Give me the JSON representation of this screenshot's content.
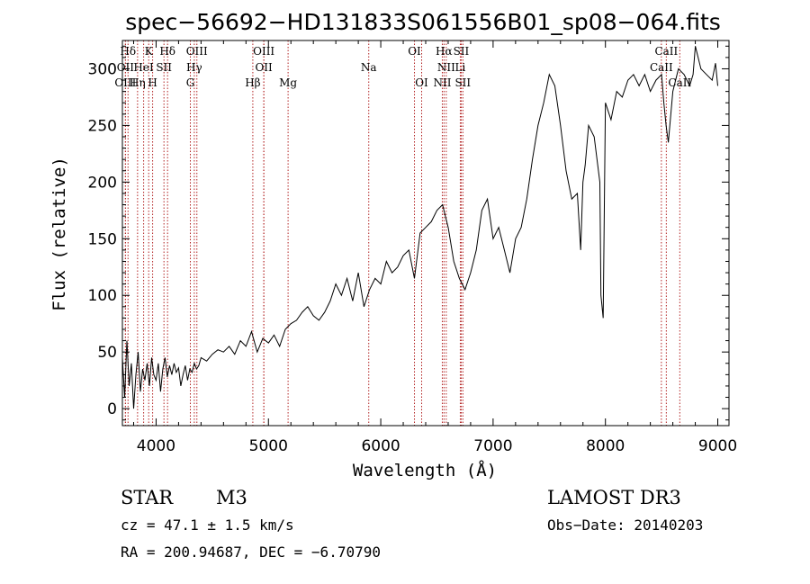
{
  "chart_data": {
    "type": "line",
    "title": "spec−56692−HD131833S061556B01_sp08−064.fits",
    "xlabel": "Wavelength (Å)",
    "ylabel": "Flux (relative)",
    "xlim": [
      3700,
      9100
    ],
    "ylim": [
      -15,
      325
    ],
    "xticks": [
      4000,
      5000,
      6000,
      7000,
      8000,
      9000
    ],
    "yticks": [
      0,
      50,
      100,
      150,
      200,
      250,
      300
    ],
    "grid": false,
    "series": [
      {
        "color": "#000000",
        "x": [
          3700,
          3720,
          3740,
          3760,
          3780,
          3800,
          3820,
          3840,
          3860,
          3880,
          3900,
          3920,
          3940,
          3960,
          3980,
          4000,
          4020,
          4040,
          4060,
          4080,
          4100,
          4120,
          4140,
          4160,
          4180,
          4200,
          4220,
          4240,
          4260,
          4280,
          4300,
          4320,
          4340,
          4360,
          4380,
          4400,
          4450,
          4500,
          4550,
          4600,
          4650,
          4700,
          4750,
          4800,
          4850,
          4900,
          4950,
          5000,
          5050,
          5100,
          5150,
          5200,
          5250,
          5300,
          5350,
          5400,
          5450,
          5500,
          5550,
          5600,
          5650,
          5700,
          5750,
          5800,
          5850,
          5900,
          5950,
          6000,
          6050,
          6100,
          6150,
          6200,
          6250,
          6300,
          6350,
          6400,
          6450,
          6500,
          6550,
          6600,
          6650,
          6700,
          6750,
          6800,
          6850,
          6900,
          6950,
          7000,
          7050,
          7100,
          7150,
          7200,
          7250,
          7300,
          7350,
          7400,
          7450,
          7500,
          7550,
          7600,
          7650,
          7700,
          7750,
          7780,
          7800,
          7820,
          7850,
          7900,
          7950,
          7960,
          7980,
          8000,
          8050,
          8100,
          8150,
          8200,
          8250,
          8300,
          8350,
          8400,
          8450,
          8500,
          8520,
          8540,
          8560,
          8600,
          8650,
          8700,
          8750,
          8780,
          8800,
          8850,
          8900,
          8950,
          8980,
          9000
        ],
        "y": [
          45,
          10,
          60,
          20,
          40,
          0,
          30,
          50,
          15,
          35,
          25,
          40,
          20,
          45,
          30,
          25,
          40,
          15,
          35,
          45,
          28,
          38,
          30,
          40,
          32,
          36,
          20,
          30,
          38,
          25,
          35,
          32,
          40,
          35,
          38,
          45,
          42,
          48,
          52,
          50,
          55,
          48,
          60,
          55,
          68,
          50,
          62,
          58,
          65,
          55,
          70,
          75,
          78,
          85,
          90,
          82,
          78,
          85,
          95,
          110,
          100,
          115,
          95,
          120,
          90,
          105,
          115,
          110,
          130,
          120,
          125,
          135,
          140,
          115,
          155,
          160,
          165,
          175,
          180,
          160,
          130,
          115,
          105,
          120,
          140,
          175,
          185,
          150,
          160,
          140,
          120,
          150,
          160,
          185,
          220,
          250,
          270,
          295,
          285,
          250,
          210,
          185,
          190,
          140,
          200,
          215,
          250,
          240,
          200,
          100,
          80,
          270,
          255,
          280,
          275,
          290,
          295,
          285,
          295,
          280,
          290,
          295,
          270,
          250,
          235,
          280,
          300,
          295,
          285,
          295,
          320,
          300,
          295,
          290,
          305,
          285
        ]
      }
    ],
    "line_markers": [
      {
        "label": "Hδ",
        "x": 3750,
        "row": 0
      },
      {
        "label": "K",
        "x": 3934,
        "row": 0
      },
      {
        "label": "Hδ",
        "x": 4102,
        "row": 0
      },
      {
        "label": "OIII",
        "x": 4363,
        "row": 0
      },
      {
        "label": "OIII",
        "x": 4959,
        "row": 0
      },
      {
        "label": "OI",
        "x": 6300,
        "row": 0
      },
      {
        "label": "Hα",
        "x": 6563,
        "row": 0
      },
      {
        "label": "SII",
        "x": 6716,
        "row": 0
      },
      {
        "label": "CaII",
        "x": 8542,
        "row": 0
      },
      {
        "label": "OII",
        "x": 3727,
        "row": 1
      },
      {
        "label": "HeI",
        "x": 3889,
        "row": 1
      },
      {
        "label": "SII",
        "x": 4070,
        "row": 1
      },
      {
        "label": "Hγ",
        "x": 4340,
        "row": 1
      },
      {
        "label": "OII",
        "x": 4959,
        "row": 1
      },
      {
        "label": "Na",
        "x": 5893,
        "row": 1
      },
      {
        "label": "NII",
        "x": 6583,
        "row": 1
      },
      {
        "label": "Li",
        "x": 6708,
        "row": 1
      },
      {
        "label": "CaII",
        "x": 8498,
        "row": 1
      },
      {
        "label": "OIII",
        "x": 3727,
        "row": 2
      },
      {
        "label": "Hη",
        "x": 3835,
        "row": 2
      },
      {
        "label": "H",
        "x": 3969,
        "row": 2
      },
      {
        "label": "G",
        "x": 4305,
        "row": 2
      },
      {
        "label": "Hβ",
        "x": 4861,
        "row": 2
      },
      {
        "label": "Mg",
        "x": 5175,
        "row": 2
      },
      {
        "label": "OI",
        "x": 6364,
        "row": 2
      },
      {
        "label": "NII",
        "x": 6548,
        "row": 2
      },
      {
        "label": "SII",
        "x": 6731,
        "row": 2
      },
      {
        "label": "CaII",
        "x": 8662,
        "row": 2
      }
    ],
    "marker_color": "#b22222"
  },
  "info": {
    "class": "STAR",
    "subclass": "M3",
    "survey": "LAMOST DR3",
    "cz": "cz = 47.1 ± 1.5 km/s",
    "obs_date": "Obs−Date: 20140203",
    "radec": "RA = 200.94687, DEC =  −6.70790"
  }
}
